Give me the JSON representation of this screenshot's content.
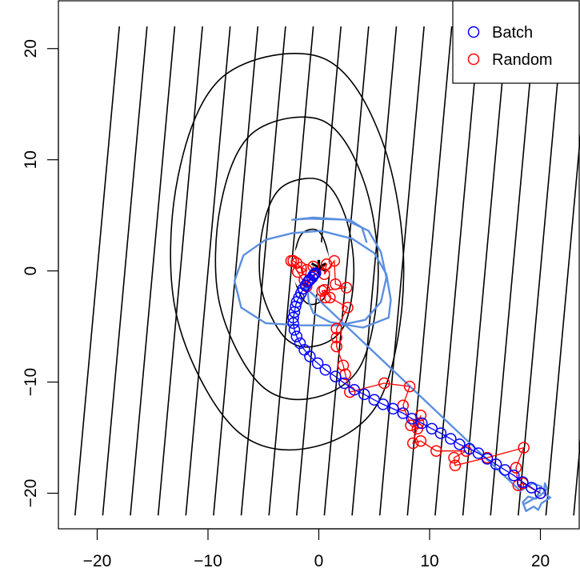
{
  "chart_data": {
    "type": "scatter",
    "title": "",
    "xlabel": "",
    "ylabel": "",
    "xlim": [
      -23.5,
      23.5
    ],
    "ylim": [
      -23.2,
      24.3
    ],
    "x_ticks": [
      -20,
      -10,
      0,
      10,
      20
    ],
    "y_ticks": [
      -20,
      -10,
      0,
      10,
      20
    ],
    "x_tick_labels": [
      "−20",
      "−10",
      "0",
      "10",
      "20"
    ],
    "y_tick_labels": [
      "−20",
      "−10",
      "0",
      "10",
      "20"
    ],
    "grid": false,
    "legend_position": "top-right",
    "optimum": {
      "x": 0,
      "y": 0,
      "marker": "*"
    },
    "colors": {
      "batch": "#0000ff",
      "random": "#ff0000",
      "trace": "#5b8fe0",
      "contour": "#000000"
    },
    "series": [
      {
        "name": "Batch",
        "color": "#0000ff",
        "marker": "open-circle",
        "points": [
          [
            20.0,
            -20.0
          ],
          [
            19.2,
            -19.5
          ],
          [
            18.4,
            -19.0
          ],
          [
            17.6,
            -18.4
          ],
          [
            16.8,
            -17.9
          ],
          [
            16.0,
            -17.4
          ],
          [
            15.2,
            -16.9
          ],
          [
            14.4,
            -16.4
          ],
          [
            13.6,
            -16.0
          ],
          [
            12.7,
            -15.6
          ],
          [
            11.9,
            -15.1
          ],
          [
            11.0,
            -14.6
          ],
          [
            10.2,
            -14.2
          ],
          [
            9.3,
            -13.7
          ],
          [
            8.4,
            -13.3
          ],
          [
            7.6,
            -12.8
          ],
          [
            6.7,
            -12.4
          ],
          [
            5.8,
            -12.0
          ],
          [
            5.0,
            -11.6
          ],
          [
            4.1,
            -11.1
          ],
          [
            3.2,
            -10.7
          ],
          [
            2.3,
            -10.1
          ],
          [
            1.5,
            -9.5
          ],
          [
            0.6,
            -8.9
          ],
          [
            -0.1,
            -8.3
          ],
          [
            -0.8,
            -7.7
          ],
          [
            -1.3,
            -7.1
          ],
          [
            -1.7,
            -6.5
          ],
          [
            -2.0,
            -5.9
          ],
          [
            -2.2,
            -5.3
          ],
          [
            -2.3,
            -4.7
          ],
          [
            -2.3,
            -4.2
          ],
          [
            -2.2,
            -3.7
          ],
          [
            -2.1,
            -3.2
          ],
          [
            -2.0,
            -2.8
          ],
          [
            -1.8,
            -2.4
          ],
          [
            -1.6,
            -2.0
          ],
          [
            -1.4,
            -1.6
          ],
          [
            -1.2,
            -1.3
          ],
          [
            -1.0,
            -1.0
          ],
          [
            -0.8,
            -0.8
          ],
          [
            -0.6,
            -0.6
          ],
          [
            -0.5,
            -0.4
          ],
          [
            -0.4,
            -0.3
          ],
          [
            -0.3,
            -0.2
          ]
        ]
      },
      {
        "name": "Random",
        "color": "#ff0000",
        "marker": "open-circle",
        "points": [
          [
            20.0,
            -20.0
          ],
          [
            18.4,
            -19.1
          ],
          [
            18.0,
            -19.3
          ],
          [
            17.8,
            -17.7
          ],
          [
            18.5,
            -15.9
          ],
          [
            15.2,
            -16.8
          ],
          [
            12.3,
            -17.5
          ],
          [
            12.2,
            -16.8
          ],
          [
            13.3,
            -16.2
          ],
          [
            10.6,
            -16.2
          ],
          [
            9.2,
            -15.3
          ],
          [
            8.5,
            -15.5
          ],
          [
            9.0,
            -13.7
          ],
          [
            9.2,
            -13.0
          ],
          [
            8.9,
            -14.2
          ],
          [
            8.3,
            -13.9
          ],
          [
            7.6,
            -12.1
          ],
          [
            8.2,
            -10.4
          ],
          [
            5.9,
            -10.1
          ],
          [
            2.8,
            -10.9
          ],
          [
            2.4,
            -9.3
          ],
          [
            2.2,
            -8.5
          ],
          [
            1.6,
            -6.8
          ],
          [
            1.6,
            -6.0
          ],
          [
            1.6,
            -5.2
          ],
          [
            2.6,
            -3.3
          ],
          [
            1.0,
            -2.4
          ],
          [
            0.5,
            -1.7
          ],
          [
            0.6,
            -2.4
          ],
          [
            0.3,
            -1.8
          ],
          [
            2.5,
            -1.5
          ],
          [
            1.5,
            -1.2
          ],
          [
            1.4,
            0.9
          ],
          [
            0.5,
            -0.3
          ],
          [
            0.7,
            0.6
          ],
          [
            -0.9,
            -0.9
          ],
          [
            -1.3,
            -0.8
          ],
          [
            -1.1,
            0.1
          ],
          [
            -1.6,
            0.3
          ],
          [
            -2.0,
            0.7
          ],
          [
            -2.3,
            0.9
          ],
          [
            -2.5,
            0.9
          ],
          [
            -1.9,
            -0.1
          ],
          [
            -1.1,
            -1.4
          ],
          [
            -0.5,
            0.4
          ]
        ]
      },
      {
        "name": "",
        "type": "line",
        "color": "#5b8fe0",
        "points": [
          [
            18.5,
            -21.0
          ],
          [
            19.2,
            -20.6
          ],
          [
            20.0,
            -20.2
          ],
          [
            20.6,
            -19.6
          ],
          [
            20.4,
            -19.1
          ],
          [
            20.3,
            -20.0
          ],
          [
            20.9,
            -20.4
          ],
          [
            20.1,
            -20.9
          ],
          [
            19.8,
            -21.5
          ],
          [
            19.4,
            -21.2
          ],
          [
            18.7,
            -21.6
          ],
          [
            18.4,
            -20.8
          ],
          [
            18.9,
            -20.3
          ],
          [
            19.6,
            -20.5
          ],
          [
            20.1,
            -19.4
          ],
          [
            19.3,
            -19.1
          ],
          [
            18.2,
            -19.8
          ],
          [
            -1.5,
            -1.2
          ],
          [
            -1.0,
            -1.8
          ],
          [
            -0.9,
            -2.8
          ],
          [
            -0.5,
            -3.8
          ],
          [
            1.0,
            -4.6
          ],
          [
            4.0,
            -5.1
          ],
          [
            6.3,
            -4.2
          ],
          [
            6.5,
            -2.6
          ],
          [
            6.1,
            -0.3
          ],
          [
            5.0,
            1.6
          ],
          [
            3.0,
            2.9
          ],
          [
            0.2,
            3.6
          ],
          [
            -2.4,
            3.4
          ],
          [
            -4.8,
            2.8
          ],
          [
            -6.8,
            1.4
          ],
          [
            -7.6,
            -0.9
          ],
          [
            -7.0,
            -3.3
          ],
          [
            -4.8,
            -4.7
          ],
          [
            -1.6,
            -4.9
          ],
          [
            1.8,
            -4.9
          ],
          [
            4.2,
            -4.4
          ],
          [
            5.6,
            -2.8
          ],
          [
            6.1,
            -0.6
          ],
          [
            5.6,
            1.7
          ],
          [
            4.5,
            3.6
          ],
          [
            2.4,
            4.6
          ],
          [
            -0.5,
            4.8
          ],
          [
            -2.4,
            4.6
          ],
          [
            -1.0,
            4.7
          ],
          [
            2.8,
            4.6
          ],
          [
            3.9,
            3.9
          ],
          [
            4.3,
            2.6
          ]
        ]
      }
    ]
  }
}
